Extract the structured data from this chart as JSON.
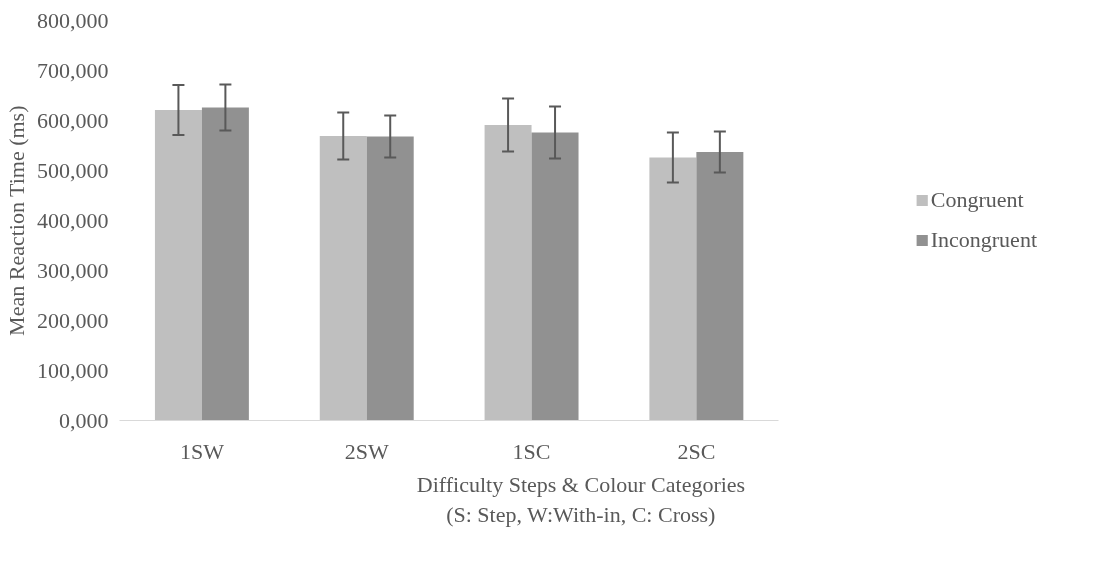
{
  "chart_data": {
    "type": "bar",
    "xlabel": "Difficulty Steps & Colour Categories\n(S: Step, W:With-in, C: Cross)",
    "ylabel": "Mean Reaction Time (ms)",
    "categories": [
      "1SW",
      "2SW",
      "1SC",
      "2SC"
    ],
    "series": [
      {
        "name": "Congruent",
        "color": "#bfbfbf",
        "values": [
          621000,
          569000,
          591000,
          526000
        ],
        "errors": [
          50000,
          47000,
          53000,
          50000
        ]
      },
      {
        "name": "Incongruent",
        "color": "#919191",
        "values": [
          626000,
          568000,
          576000,
          537000
        ],
        "errors": [
          46000,
          42000,
          52000,
          41000
        ]
      }
    ],
    "ylim": [
      0,
      800000
    ],
    "yticks": [
      {
        "value": 0,
        "label": "0,000"
      },
      {
        "value": 100000,
        "label": "100,000"
      },
      {
        "value": 200000,
        "label": "200,000"
      },
      {
        "value": 300000,
        "label": "300,000"
      },
      {
        "value": 400000,
        "label": "400,000"
      },
      {
        "value": 500000,
        "label": "500,000"
      },
      {
        "value": 600000,
        "label": "600,000"
      },
      {
        "value": 700000,
        "label": "700,000"
      },
      {
        "value": 800000,
        "label": "800,000"
      }
    ],
    "grid": false,
    "legend": "right"
  }
}
